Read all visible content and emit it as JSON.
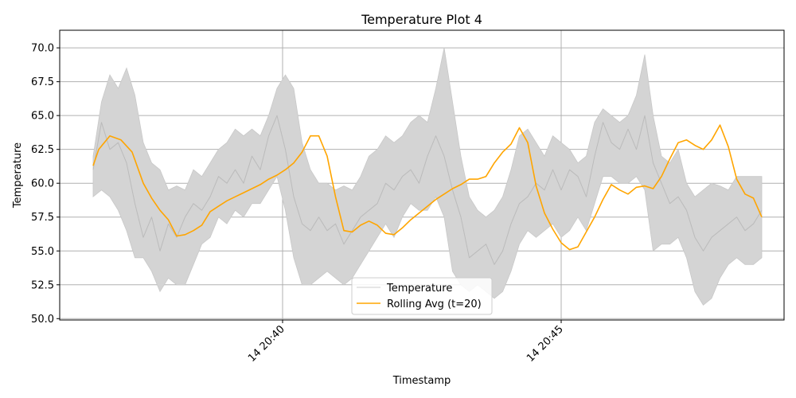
{
  "chart_data": {
    "type": "line",
    "title": "Temperature Plot 4",
    "xlabel": "Timestamp",
    "ylabel": "Temperature",
    "x_ticks": [
      {
        "t": 17.9,
        "label": "14 20:40"
      },
      {
        "t": 22.9,
        "label": "14 20:45"
      }
    ],
    "x_range": [
      13.9,
      26.9
    ],
    "ylim": [
      49.9,
      71.3
    ],
    "y_ticks": [
      50.0,
      52.5,
      55.0,
      57.5,
      60.0,
      62.5,
      65.0,
      67.5,
      70.0
    ],
    "y_tick_labels": [
      "50.0",
      "52.5",
      "55.0",
      "57.5",
      "60.0",
      "62.5",
      "65.0",
      "67.5",
      "70.0"
    ],
    "grid": true,
    "legend_position": "bottom-center",
    "series": [
      {
        "name": "Temperature",
        "color": "#bbbbbb",
        "x": [
          14.5,
          14.65,
          14.8,
          14.95,
          15.1,
          15.25,
          15.4,
          15.55,
          15.7,
          15.85,
          16.0,
          16.15,
          16.3,
          16.45,
          16.6,
          16.75,
          16.9,
          17.05,
          17.2,
          17.35,
          17.5,
          17.65,
          17.8,
          17.95,
          18.1,
          18.25,
          18.4,
          18.55,
          18.7,
          18.85,
          19.0,
          19.15,
          19.3,
          19.45,
          19.6,
          19.75,
          19.9,
          20.05,
          20.2,
          20.35,
          20.5,
          20.65,
          20.8,
          20.95,
          21.1,
          21.25,
          21.4,
          21.55,
          21.7,
          21.85,
          22.0,
          22.15,
          22.3,
          22.45,
          22.6,
          22.75,
          22.9,
          23.05,
          23.2,
          23.35,
          23.5,
          23.65,
          23.8,
          23.95,
          24.1,
          24.25,
          24.4,
          24.55,
          24.7,
          24.85,
          25.0,
          25.15,
          25.3,
          25.45,
          25.6,
          25.75,
          25.9,
          26.05,
          26.2,
          26.35,
          26.5
        ],
        "values": [
          61.0,
          64.5,
          62.5,
          63.0,
          61.5,
          58.5,
          56.0,
          57.5,
          55.0,
          57.0,
          56.0,
          57.5,
          58.5,
          58.0,
          59.0,
          60.5,
          60.0,
          61.0,
          60.0,
          62.0,
          61.0,
          63.5,
          65.0,
          62.5,
          59.0,
          57.0,
          56.5,
          57.5,
          56.5,
          57.0,
          55.5,
          56.5,
          57.5,
          58.0,
          58.5,
          60.0,
          59.5,
          60.5,
          61.0,
          60.0,
          62.0,
          63.5,
          62.0,
          59.5,
          57.5,
          54.5,
          55.0,
          55.5,
          54.0,
          55.0,
          57.0,
          58.5,
          59.0,
          60.0,
          59.5,
          61.0,
          59.5,
          61.0,
          60.5,
          59.0,
          62.0,
          64.5,
          63.0,
          62.5,
          64.0,
          62.5,
          65.0,
          61.5,
          60.0,
          58.5,
          59.0,
          58.0,
          56.0,
          55.0,
          56.0,
          56.5,
          57.0,
          57.5,
          56.5,
          57.0,
          58.0
        ]
      },
      {
        "name": "Rolling Avg (t=20)",
        "color": "#ffa500",
        "x": [
          14.5,
          14.6,
          14.8,
          15.0,
          15.2,
          15.4,
          15.55,
          15.7,
          15.85,
          16.0,
          16.15,
          16.3,
          16.45,
          16.6,
          16.75,
          16.9,
          17.05,
          17.2,
          17.35,
          17.5,
          17.65,
          17.8,
          17.95,
          18.1,
          18.25,
          18.4,
          18.55,
          18.7,
          18.85,
          19.0,
          19.15,
          19.3,
          19.45,
          19.6,
          19.75,
          19.9,
          20.05,
          20.2,
          20.35,
          20.5,
          20.65,
          20.8,
          20.95,
          21.1,
          21.25,
          21.4,
          21.55,
          21.7,
          21.85,
          22.0,
          22.15,
          22.3,
          22.45,
          22.6,
          22.75,
          22.9,
          23.05,
          23.2,
          23.35,
          23.5,
          23.65,
          23.8,
          23.95,
          24.1,
          24.25,
          24.4,
          24.55,
          24.7,
          24.85,
          25.0,
          25.15,
          25.3,
          25.45,
          25.6,
          25.75,
          25.9,
          26.05,
          26.2,
          26.35,
          26.5
        ],
        "values": [
          61.3,
          62.5,
          63.5,
          63.2,
          62.3,
          60.0,
          58.9,
          58.0,
          57.3,
          56.1,
          56.2,
          56.5,
          56.9,
          57.9,
          58.3,
          58.7,
          59.0,
          59.3,
          59.6,
          59.9,
          60.3,
          60.6,
          61.0,
          61.5,
          62.3,
          63.5,
          63.5,
          62.0,
          59.0,
          56.5,
          56.4,
          56.9,
          57.2,
          56.9,
          56.3,
          56.2,
          56.7,
          57.3,
          57.8,
          58.3,
          58.8,
          59.2,
          59.6,
          59.9,
          60.3,
          60.3,
          60.5,
          61.5,
          62.3,
          62.9,
          64.1,
          63.0,
          59.8,
          57.8,
          56.6,
          55.6,
          55.1,
          55.3,
          56.4,
          57.5,
          58.8,
          59.9,
          59.5,
          59.2,
          59.7,
          59.8,
          59.6,
          60.5,
          61.8,
          63.0,
          63.2,
          62.8,
          62.5,
          63.2,
          64.3,
          62.7,
          60.3,
          59.2,
          58.9,
          57.5
        ]
      }
    ],
    "band": {
      "x": [
        14.5,
        14.65,
        14.8,
        14.95,
        15.1,
        15.25,
        15.4,
        15.55,
        15.7,
        15.85,
        16.0,
        16.15,
        16.3,
        16.45,
        16.6,
        16.75,
        16.9,
        17.05,
        17.2,
        17.35,
        17.5,
        17.65,
        17.8,
        17.95,
        18.1,
        18.25,
        18.4,
        18.55,
        18.7,
        18.85,
        19.0,
        19.15,
        19.3,
        19.45,
        19.6,
        19.75,
        19.9,
        20.05,
        20.2,
        20.35,
        20.5,
        20.65,
        20.8,
        20.95,
        21.1,
        21.25,
        21.4,
        21.55,
        21.7,
        21.85,
        22.0,
        22.15,
        22.3,
        22.45,
        22.6,
        22.75,
        22.9,
        23.05,
        23.2,
        23.35,
        23.5,
        23.65,
        23.8,
        23.95,
        24.1,
        24.25,
        24.4,
        24.55,
        24.7,
        24.85,
        25.0,
        25.15,
        25.3,
        25.45,
        25.6,
        25.75,
        25.9,
        26.05,
        26.2,
        26.35,
        26.5
      ],
      "upper": [
        62.0,
        66.0,
        68.0,
        67.0,
        68.5,
        66.5,
        63.0,
        61.5,
        61.0,
        59.5,
        59.8,
        59.5,
        61.0,
        60.5,
        61.5,
        62.5,
        63.0,
        64.0,
        63.5,
        64.0,
        63.5,
        65.0,
        67.0,
        68.0,
        67.0,
        63.0,
        61.0,
        60.0,
        60.0,
        59.5,
        59.8,
        59.5,
        60.5,
        62.0,
        62.5,
        63.5,
        63.0,
        63.5,
        64.5,
        65.0,
        64.5,
        67.0,
        70.0,
        66.0,
        62.0,
        59.0,
        58.0,
        57.5,
        58.0,
        59.0,
        61.0,
        63.5,
        64.0,
        63.0,
        62.0,
        63.5,
        63.0,
        62.5,
        61.5,
        62.0,
        64.5,
        65.5,
        65.0,
        64.5,
        65.0,
        66.5,
        69.5,
        65.0,
        62.0,
        61.5,
        62.5,
        60.0,
        59.0,
        59.5,
        60.0,
        59.8,
        59.5,
        60.5,
        60.5,
        60.5,
        60.5
      ],
      "lower": [
        59.0,
        59.5,
        59.0,
        58.0,
        56.5,
        54.5,
        54.5,
        53.5,
        52.0,
        53.0,
        52.5,
        52.5,
        54.0,
        55.5,
        56.0,
        57.5,
        57.0,
        58.0,
        57.5,
        58.5,
        58.5,
        59.5,
        60.5,
        58.0,
        54.5,
        52.5,
        52.5,
        53.0,
        53.5,
        53.0,
        52.5,
        53.0,
        54.0,
        55.0,
        56.0,
        57.0,
        56.0,
        57.5,
        58.5,
        58.0,
        58.0,
        59.0,
        57.5,
        53.5,
        52.5,
        52.0,
        52.5,
        52.0,
        51.5,
        52.0,
        53.5,
        55.5,
        56.5,
        56.0,
        56.5,
        57.0,
        56.0,
        56.5,
        57.5,
        56.5,
        58.5,
        60.5,
        60.5,
        60.0,
        60.0,
        60.5,
        59.5,
        55.0,
        55.5,
        55.5,
        56.0,
        54.5,
        52.0,
        51.0,
        51.5,
        53.0,
        54.0,
        54.5,
        54.0,
        54.0,
        54.5
      ]
    }
  }
}
